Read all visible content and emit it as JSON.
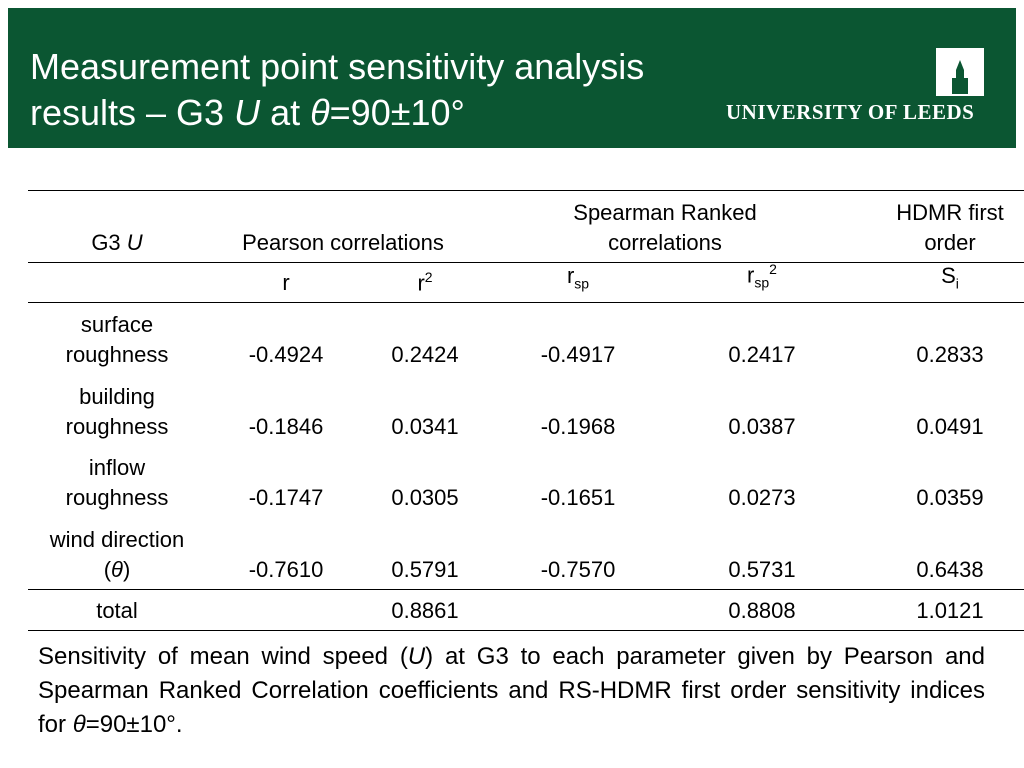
{
  "header": {
    "title": {
      "line1": "Measurement point sensitivity analysis",
      "line2": [
        "results – G3 ",
        "U",
        " at ",
        "θ",
        "=90±10°"
      ]
    },
    "logo_text": "UNIVERSITY OF LEEDS"
  },
  "table": {
    "group_headers": [
      [
        "G3 ",
        "U"
      ],
      [
        "Pearson correlations"
      ],
      [
        "Spearman Ranked",
        "correlations"
      ],
      [
        "HDMR first",
        "order"
      ]
    ],
    "column_headers": [
      [
        "r"
      ],
      [
        "r",
        "2"
      ],
      [
        "r",
        "sp"
      ],
      [
        "r",
        "sp",
        "2"
      ],
      [
        "S",
        "i"
      ]
    ],
    "rows": [
      {
        "label": [
          "surface",
          "roughness"
        ],
        "values": [
          "-0.4924",
          "0.2424",
          "-0.4917",
          "0.2417",
          "0.2833"
        ]
      },
      {
        "label": [
          "building",
          "roughness"
        ],
        "values": [
          "-0.1846",
          "0.0341",
          "-0.1968",
          "0.0387",
          "0.0491"
        ]
      },
      {
        "label": [
          "inflow",
          "roughness"
        ],
        "values": [
          "-0.1747",
          "0.0305",
          "-0.1651",
          "0.0273",
          "0.0359"
        ]
      },
      {
        "label": [
          "wind direction",
          "(",
          "θ",
          ")"
        ],
        "values": [
          "-0.7610",
          "0.5791",
          "-0.7570",
          "0.5731",
          "0.6438"
        ]
      }
    ],
    "total": {
      "label": "total",
      "values": [
        null,
        "0.8861",
        null,
        "0.8808",
        "1.0121"
      ]
    }
  },
  "caption": [
    "Sensitivity of mean wind speed (",
    "U",
    ") at G3 to each parameter given by Pearson and Spearman Ranked Correlation coefficients and RS-HDMR first order sensitivity indices for ",
    "θ",
    "=90±10°."
  ]
}
